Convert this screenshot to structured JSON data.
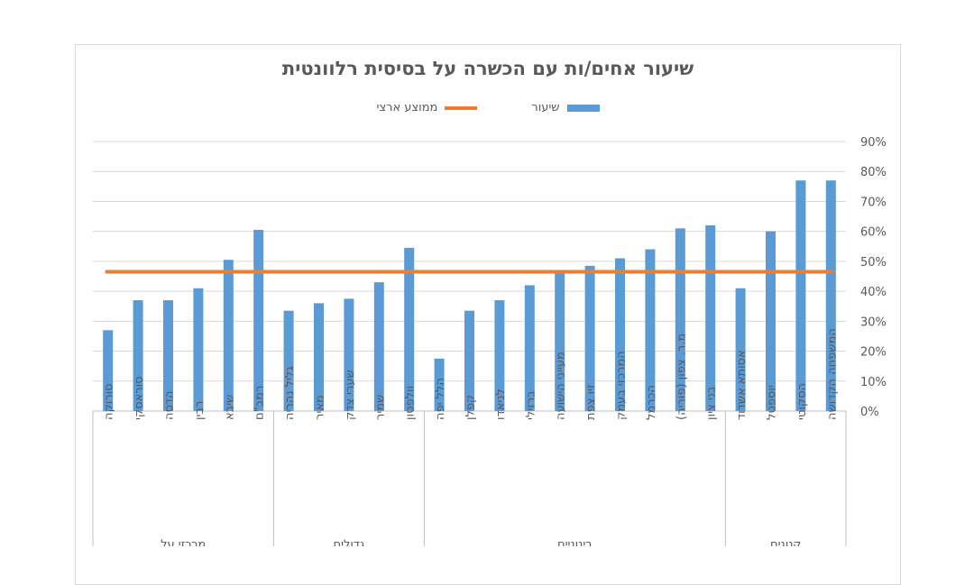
{
  "chart_data": {
    "type": "bar",
    "title": "שיעור אחים/ות עם הכשרה על בסיסית רלוונטית",
    "legend_position": "top",
    "grid": true,
    "ylim": [
      0,
      0.9
    ],
    "yticks": [
      "0%",
      "10%",
      "20%",
      "30%",
      "40%",
      "50%",
      "60%",
      "70%",
      "80%",
      "90%"
    ],
    "categories": [
      "המשפחה הקדושה",
      "הסקוטי",
      "יוספטל",
      "אסותא אשדוד",
      "בני ציון",
      "מ.ר. צפון (פוריה)",
      "הכרמל",
      "המרכזי בעמק",
      "זיו צפת",
      "מעייני הישועה",
      "ברזילי",
      "לניאדו",
      "קפלן",
      "הלל יפה",
      "וולפסון",
      "שמיר",
      "שערי צדק",
      "מאיר",
      "גליל נהריה",
      "רמב\"ם",
      "שיבא",
      "רבין",
      "הדסה",
      "סוראסקי",
      "סורוקה"
    ],
    "groups": [
      {
        "label": "קטנים",
        "count": 4
      },
      {
        "label": "בינוניים",
        "count": 10
      },
      {
        "label": "גדולים",
        "count": 5
      },
      {
        "label": "מרכזי על",
        "count": 6
      }
    ],
    "series": [
      {
        "name": "שיעור",
        "color": "#5b9bd5",
        "values": [
          0.77,
          0.77,
          0.6,
          0.41,
          0.62,
          0.61,
          0.54,
          0.51,
          0.485,
          0.465,
          0.42,
          0.37,
          0.335,
          0.175,
          0.545,
          0.43,
          0.375,
          0.36,
          0.335,
          0.605,
          0.505,
          0.41,
          0.37,
          0.37,
          0.27
        ]
      },
      {
        "name": "ממוצע ארצי",
        "color": "#ed7d31",
        "type": "line",
        "value": 0.465
      }
    ]
  }
}
